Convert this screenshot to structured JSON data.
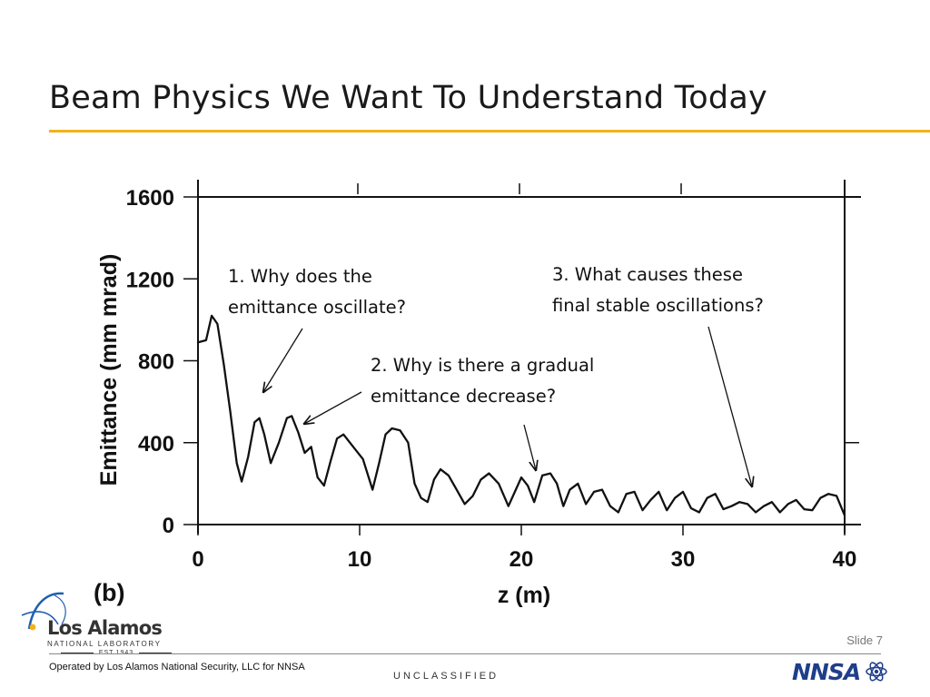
{
  "slide": {
    "title": "Beam Physics We Want To Understand Today",
    "accent_color": "#f2b21b",
    "slide_number": "Slide 7",
    "operated_by": "Operated by Los Alamos National Security, LLC for NNSA",
    "classification": "UNCLASSIFIED"
  },
  "logo": {
    "name": "Los Alamos",
    "subtitle": "NATIONAL LABORATORY",
    "established": "EST.1943",
    "icon": "los-alamos-swoosh-icon",
    "agency_mark": "NNSA"
  },
  "annotations": {
    "q1": [
      "1.  Why does the",
      "emittance oscillate?"
    ],
    "q2": [
      "2.  Why is there a gradual",
      "emittance decrease?"
    ],
    "q3": [
      "3. What causes these",
      "final stable oscillations?"
    ]
  },
  "chart_data": {
    "type": "line",
    "panel_label": "(b)",
    "xlabel": "z (m)",
    "ylabel": "Emittance (mm mrad)",
    "xlim": [
      0,
      40
    ],
    "ylim": [
      0,
      1600
    ],
    "xticks": [
      0,
      10,
      20,
      30,
      40
    ],
    "yticks": [
      0,
      400,
      800,
      1200,
      1600
    ],
    "grid": false,
    "series": [
      {
        "color": "#111111",
        "x": [
          0,
          0.5,
          0.85,
          1.2,
          1.6,
          2.0,
          2.4,
          2.7,
          3.1,
          3.5,
          3.8,
          4.1,
          4.5,
          5.0,
          5.5,
          5.8,
          6.2,
          6.6,
          7.0,
          7.4,
          7.8,
          8.2,
          8.6,
          9.0,
          9.6,
          10.2,
          10.8,
          11.2,
          11.6,
          12.0,
          12.5,
          13.0,
          13.4,
          13.8,
          14.2,
          14.6,
          15.0,
          15.5,
          16.0,
          16.5,
          17.0,
          17.5,
          18.0,
          18.6,
          19.2,
          19.6,
          20.0,
          20.4,
          20.8,
          21.3,
          21.8,
          22.2,
          22.6,
          23.0,
          23.5,
          24.0,
          24.5,
          25.0,
          25.5,
          26.0,
          26.5,
          27.0,
          27.5,
          28.0,
          28.5,
          29.0,
          29.5,
          30.0,
          30.5,
          31.0,
          31.5,
          32.0,
          32.5,
          33.0,
          33.5,
          34.0,
          34.5,
          35.0,
          35.5,
          36.0,
          36.5,
          37.0,
          37.5,
          38.0,
          38.5,
          39.0,
          39.5,
          40.0
        ],
        "y": [
          890,
          900,
          1020,
          980,
          780,
          550,
          300,
          210,
          330,
          500,
          520,
          440,
          300,
          400,
          520,
          530,
          450,
          350,
          380,
          230,
          190,
          310,
          420,
          440,
          380,
          320,
          170,
          300,
          440,
          470,
          460,
          400,
          200,
          130,
          110,
          220,
          270,
          240,
          170,
          100,
          140,
          220,
          250,
          200,
          90,
          160,
          230,
          190,
          110,
          240,
          250,
          200,
          90,
          170,
          200,
          100,
          160,
          170,
          90,
          60,
          150,
          160,
          70,
          120,
          160,
          70,
          130,
          160,
          80,
          60,
          130,
          150,
          75,
          90,
          110,
          100,
          60,
          90,
          110,
          60,
          100,
          120,
          75,
          70,
          130,
          150,
          140,
          45
        ]
      }
    ]
  }
}
